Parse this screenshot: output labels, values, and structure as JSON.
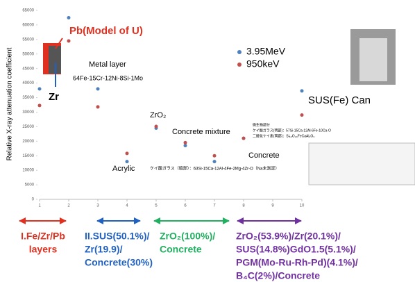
{
  "chart_data": {
    "type": "scatter",
    "y_label": "Relative X-ray attenuation coefficient",
    "x": [
      1,
      2,
      3,
      4,
      5,
      6,
      7,
      8,
      9,
      10
    ],
    "series": [
      {
        "name": "3.95MeV",
        "color": "#4f81bd",
        "values": [
          38000,
          62500,
          38000,
          13000,
          24500,
          18500,
          13000,
          21000,
          null,
          37300
        ]
      },
      {
        "name": "950keV",
        "color": "#c0504d",
        "values": [
          32300,
          54500,
          31800,
          15800,
          25100,
          19500,
          15000,
          21000,
          null,
          29000
        ]
      }
    ],
    "xlim": [
      1,
      10
    ],
    "xticks": [
      1,
      2,
      3,
      4,
      5,
      6,
      7,
      8,
      9,
      10
    ],
    "ylim": [
      0,
      65000
    ],
    "yticks": [
      0,
      5000,
      10000,
      15000,
      20000,
      25000,
      30000,
      35000,
      40000,
      45000,
      50000,
      55000,
      60000,
      65000
    ],
    "annotations": {
      "pb": "Pb(Model of U)",
      "zr": "Zr",
      "metal": "Metal layer",
      "alloy": "64Fe-15Cr-12Ni-8Si-1Mo",
      "zro2": "ZrO₂",
      "mixture": "Concrete mixture",
      "acrylic": "Acrylic",
      "concrete": "Concrete",
      "glass_dark": "ケイ酸ガラス（暗部）：63Si-15Ca-12Al-4Fe-2Mg-4Zr-O（Na未測定）",
      "micro": "微生物部分",
      "glass_light": "ケイ酸ガラス(明部)：57Si-15Ca-12Al-6Fe-10Ca-O",
      "silica": "二酸化ケイ素(明部)：Si₆₀O₄₀FeCaAl₂O₃",
      "can": "SUS(Fe) Can"
    },
    "groups": {
      "g1": [
        "I.Fe/Zr/Pb",
        "layers"
      ],
      "g2": [
        "II.SUS(50.1%)/",
        "Zr(19.9)/",
        "Concrete(30%)"
      ],
      "g3": [
        "ZrO₂(100%)/",
        "Concrete"
      ],
      "g4": [
        "ZrO₂(53.9%)/Zr(20.1%)/",
        "SUS(14.8%)GdO1.5(5.1%)/",
        "PGM(Mo-Ru-Rh-Pd)(4.1%)/",
        "B₄C(2%)/Concrete"
      ]
    }
  }
}
